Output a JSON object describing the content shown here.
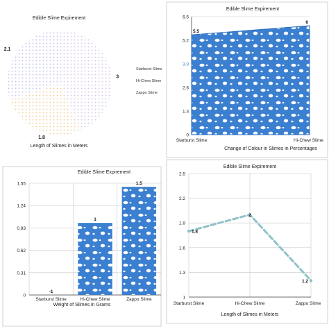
{
  "colors": {
    "blue": "#3b7fd0",
    "blue_dark": "#2a6bbd",
    "dash_line": "#8fc1c9",
    "grid": "#c8c8c8",
    "axis": "#444444",
    "pie_slice_1": "#c7c9ee",
    "pie_slice_2": "#f2d2a3",
    "pie_slice_3": "#dcc9ee"
  },
  "chart_data": [
    {
      "type": "pie",
      "title": "Edible Slime Expirement",
      "xlabel": "Length of Slimes in Meters",
      "categories": [
        "Starburst Slime",
        "Hi-Chew Slime",
        "Zappo Slime"
      ],
      "values": [
        2.1,
        1.8,
        3
      ],
      "value_labels": [
        "2.1",
        "1.8",
        "3"
      ],
      "legend": "right"
    },
    {
      "type": "area",
      "title": "Edible Slime Expirement",
      "xlabel": "Change of Colour in Slimes in Percentages",
      "categories": [
        "Starburst Slime",
        "Hi-Chew Slime"
      ],
      "values": [
        5.5,
        6
      ],
      "value_labels": [
        "5.5",
        "6"
      ],
      "ylim": [
        0,
        6.5
      ],
      "yticks": [
        "0",
        "1.3",
        "2.6",
        "3.9",
        "5.2",
        "6.5"
      ],
      "grid": true
    },
    {
      "type": "bar",
      "title": "Edible Slime Expirement",
      "xlabel": "Weight of Slimes in Grams",
      "categories": [
        "Starburst Slime",
        "Hi-Chew Slime",
        "Zappo Slime"
      ],
      "values": [
        -1,
        1,
        1.5
      ],
      "value_labels": [
        "-1",
        "1",
        "1.5"
      ],
      "ylim": [
        0,
        1.55
      ],
      "yticks": [
        "0",
        "0.31",
        "0.62",
        "0.93",
        "1.24",
        "1.55"
      ],
      "grid": true
    },
    {
      "type": "line",
      "title": "Edible Slime Expirement",
      "xlabel": "Length of Slimes in Meters",
      "categories": [
        "Starburst Slime",
        "Hi-Chew Slime",
        "Zappo Slime"
      ],
      "values": [
        1.8,
        2,
        1.2
      ],
      "value_labels": [
        "1.8",
        "2",
        "1.2"
      ],
      "ylim": [
        1,
        2.5
      ],
      "yticks": [
        "1",
        "1.3",
        "1.6",
        "1.9",
        "2.2",
        "2.5"
      ],
      "grid": true
    }
  ]
}
